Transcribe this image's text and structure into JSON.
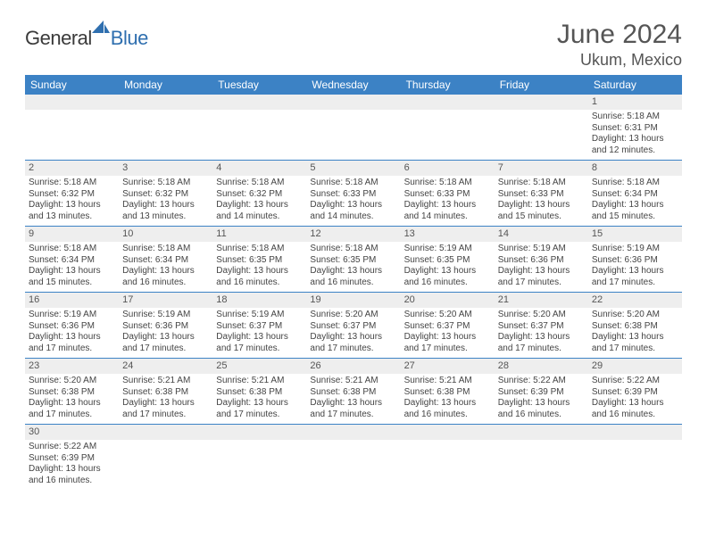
{
  "brand": {
    "general": "General",
    "blue": "Blue"
  },
  "header": {
    "month_year": "June 2024",
    "location": "Ukum, Mexico"
  },
  "colors": {
    "header_bg": "#3C82C5",
    "header_text": "#ffffff",
    "daynum_bg": "#EEEEEE",
    "row_divider": "#3C82C5",
    "brand_blue": "#2F6FAF",
    "text": "#444444"
  },
  "weekdays": [
    "Sunday",
    "Monday",
    "Tuesday",
    "Wednesday",
    "Thursday",
    "Friday",
    "Saturday"
  ],
  "weeks": [
    [
      null,
      null,
      null,
      null,
      null,
      null,
      {
        "n": "1",
        "sunrise": "5:18 AM",
        "sunset": "6:31 PM",
        "daylight": "13 hours and 12 minutes."
      }
    ],
    [
      {
        "n": "2",
        "sunrise": "5:18 AM",
        "sunset": "6:32 PM",
        "daylight": "13 hours and 13 minutes."
      },
      {
        "n": "3",
        "sunrise": "5:18 AM",
        "sunset": "6:32 PM",
        "daylight": "13 hours and 13 minutes."
      },
      {
        "n": "4",
        "sunrise": "5:18 AM",
        "sunset": "6:32 PM",
        "daylight": "13 hours and 14 minutes."
      },
      {
        "n": "5",
        "sunrise": "5:18 AM",
        "sunset": "6:33 PM",
        "daylight": "13 hours and 14 minutes."
      },
      {
        "n": "6",
        "sunrise": "5:18 AM",
        "sunset": "6:33 PM",
        "daylight": "13 hours and 14 minutes."
      },
      {
        "n": "7",
        "sunrise": "5:18 AM",
        "sunset": "6:33 PM",
        "daylight": "13 hours and 15 minutes."
      },
      {
        "n": "8",
        "sunrise": "5:18 AM",
        "sunset": "6:34 PM",
        "daylight": "13 hours and 15 minutes."
      }
    ],
    [
      {
        "n": "9",
        "sunrise": "5:18 AM",
        "sunset": "6:34 PM",
        "daylight": "13 hours and 15 minutes."
      },
      {
        "n": "10",
        "sunrise": "5:18 AM",
        "sunset": "6:34 PM",
        "daylight": "13 hours and 16 minutes."
      },
      {
        "n": "11",
        "sunrise": "5:18 AM",
        "sunset": "6:35 PM",
        "daylight": "13 hours and 16 minutes."
      },
      {
        "n": "12",
        "sunrise": "5:18 AM",
        "sunset": "6:35 PM",
        "daylight": "13 hours and 16 minutes."
      },
      {
        "n": "13",
        "sunrise": "5:19 AM",
        "sunset": "6:35 PM",
        "daylight": "13 hours and 16 minutes."
      },
      {
        "n": "14",
        "sunrise": "5:19 AM",
        "sunset": "6:36 PM",
        "daylight": "13 hours and 17 minutes."
      },
      {
        "n": "15",
        "sunrise": "5:19 AM",
        "sunset": "6:36 PM",
        "daylight": "13 hours and 17 minutes."
      }
    ],
    [
      {
        "n": "16",
        "sunrise": "5:19 AM",
        "sunset": "6:36 PM",
        "daylight": "13 hours and 17 minutes."
      },
      {
        "n": "17",
        "sunrise": "5:19 AM",
        "sunset": "6:36 PM",
        "daylight": "13 hours and 17 minutes."
      },
      {
        "n": "18",
        "sunrise": "5:19 AM",
        "sunset": "6:37 PM",
        "daylight": "13 hours and 17 minutes."
      },
      {
        "n": "19",
        "sunrise": "5:20 AM",
        "sunset": "6:37 PM",
        "daylight": "13 hours and 17 minutes."
      },
      {
        "n": "20",
        "sunrise": "5:20 AM",
        "sunset": "6:37 PM",
        "daylight": "13 hours and 17 minutes."
      },
      {
        "n": "21",
        "sunrise": "5:20 AM",
        "sunset": "6:37 PM",
        "daylight": "13 hours and 17 minutes."
      },
      {
        "n": "22",
        "sunrise": "5:20 AM",
        "sunset": "6:38 PM",
        "daylight": "13 hours and 17 minutes."
      }
    ],
    [
      {
        "n": "23",
        "sunrise": "5:20 AM",
        "sunset": "6:38 PM",
        "daylight": "13 hours and 17 minutes."
      },
      {
        "n": "24",
        "sunrise": "5:21 AM",
        "sunset": "6:38 PM",
        "daylight": "13 hours and 17 minutes."
      },
      {
        "n": "25",
        "sunrise": "5:21 AM",
        "sunset": "6:38 PM",
        "daylight": "13 hours and 17 minutes."
      },
      {
        "n": "26",
        "sunrise": "5:21 AM",
        "sunset": "6:38 PM",
        "daylight": "13 hours and 17 minutes."
      },
      {
        "n": "27",
        "sunrise": "5:21 AM",
        "sunset": "6:38 PM",
        "daylight": "13 hours and 16 minutes."
      },
      {
        "n": "28",
        "sunrise": "5:22 AM",
        "sunset": "6:39 PM",
        "daylight": "13 hours and 16 minutes."
      },
      {
        "n": "29",
        "sunrise": "5:22 AM",
        "sunset": "6:39 PM",
        "daylight": "13 hours and 16 minutes."
      }
    ],
    [
      {
        "n": "30",
        "sunrise": "5:22 AM",
        "sunset": "6:39 PM",
        "daylight": "13 hours and 16 minutes."
      },
      null,
      null,
      null,
      null,
      null,
      null
    ]
  ],
  "labels": {
    "sunrise": "Sunrise:",
    "sunset": "Sunset:",
    "daylight": "Daylight:"
  }
}
